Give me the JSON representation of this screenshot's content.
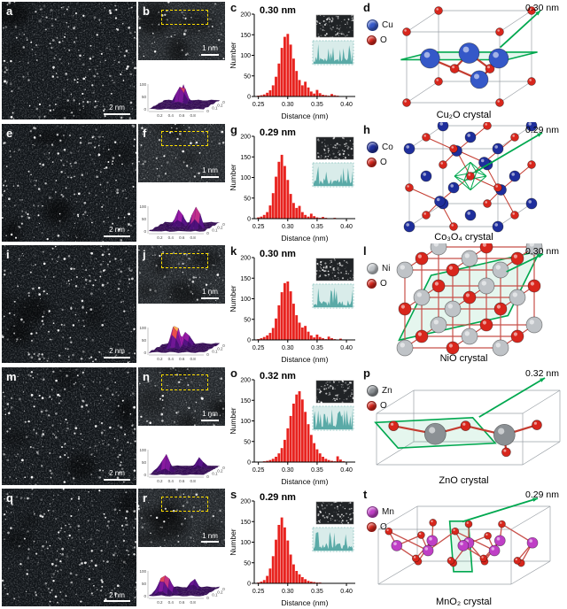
{
  "figure": {
    "rows": [
      {
        "stem": {
          "letter": "a",
          "scale_bar": "2 nm"
        },
        "zoom": {
          "letter": "b",
          "scale_bar": "1 nm"
        },
        "hist": {
          "letter": "c"
        },
        "crystal": {
          "letter": "d",
          "distance_label": "0.30 nm",
          "metal_label": "Cu",
          "metal_color": "#3558c8",
          "oxygen_label": "O",
          "caption": "Cu₂O crystal"
        }
      },
      {
        "stem": {
          "letter": "e",
          "scale_bar": "2 nm"
        },
        "zoom": {
          "letter": "f",
          "scale_bar": "1 nm"
        },
        "hist": {
          "letter": "g"
        },
        "crystal": {
          "letter": "h",
          "distance_label": "0.29 nm",
          "metal_label": "Co",
          "metal_color": "#1e2e9c",
          "oxygen_label": "O",
          "caption": "Co₃O₄ crystal"
        }
      },
      {
        "stem": {
          "letter": "i",
          "scale_bar": "2 nm"
        },
        "zoom": {
          "letter": "j",
          "scale_bar": "1 nm"
        },
        "hist": {
          "letter": "k"
        },
        "crystal": {
          "letter": "l",
          "distance_label": "0.30 nm",
          "metal_label": "Ni",
          "metal_color": "#bfc3c7",
          "oxygen_label": "O",
          "caption": "NiO crystal"
        }
      },
      {
        "stem": {
          "letter": "m",
          "scale_bar": "2 nm"
        },
        "zoom": {
          "letter": "n",
          "scale_bar": "1 nm"
        },
        "hist": {
          "letter": "o"
        },
        "crystal": {
          "letter": "p",
          "distance_label": "0.32 nm",
          "metal_label": "Zn",
          "metal_color": "#8b9094",
          "oxygen_label": "O",
          "caption": "ZnO crystal"
        }
      },
      {
        "stem": {
          "letter": "q",
          "scale_bar": "2 nm"
        },
        "zoom": {
          "letter": "r",
          "scale_bar": "1 nm"
        },
        "hist": {
          "letter": "s"
        },
        "crystal": {
          "letter": "t",
          "distance_label": "0.29 nm",
          "metal_label": "Mn",
          "metal_color": "#bf3fc6",
          "oxygen_label": "O",
          "caption": "MnO₂ crystal"
        }
      }
    ]
  },
  "surface_plot": {
    "xticks": [
      "0.2",
      "0.4",
      "0.6",
      "0.8"
    ],
    "yticks": [
      "0",
      "0.1",
      "0.2",
      "0.3"
    ],
    "zticks": [
      "100",
      "50",
      "0"
    ]
  },
  "colors": {
    "oxygen": "#d8261c",
    "accent_green": "#00a84f",
    "bar_red": "#e8231f",
    "roi_yellow": "#ffdf00"
  },
  "chart_data": [
    {
      "type": "bar",
      "title": "0.30 nm",
      "xlabel": "Distance (nm)",
      "ylabel": "Number",
      "xlim": [
        0.24,
        0.42
      ],
      "ylim": [
        0,
        200
      ],
      "yticks": [
        0,
        50,
        100,
        150,
        200
      ],
      "xticks": [
        "0.25",
        "0.30",
        "0.35",
        "0.40"
      ],
      "bin_width": 0.005,
      "x": [
        0.25,
        0.255,
        0.26,
        0.265,
        0.27,
        0.275,
        0.28,
        0.285,
        0.29,
        0.295,
        0.3,
        0.305,
        0.31,
        0.315,
        0.32,
        0.325,
        0.33,
        0.335,
        0.34,
        0.345,
        0.35,
        0.355,
        0.36,
        0.365,
        0.37,
        0.375,
        0.38,
        0.385,
        0.39,
        0.395,
        0.4
      ],
      "values": [
        2,
        3,
        5,
        9,
        15,
        27,
        48,
        80,
        118,
        145,
        152,
        126,
        92,
        62,
        40,
        27,
        36,
        22,
        12,
        7,
        16,
        8,
        4,
        3,
        2,
        6,
        3,
        2,
        1,
        1,
        1
      ]
    },
    {
      "type": "bar",
      "title": "0.29 nm",
      "xlabel": "Distance (nm)",
      "ylabel": "Number",
      "xlim": [
        0.24,
        0.42
      ],
      "ylim": [
        0,
        200
      ],
      "yticks": [
        0,
        50,
        100,
        150,
        200
      ],
      "xticks": [
        "0.25",
        "0.30",
        "0.35",
        "0.40"
      ],
      "bin_width": 0.005,
      "x": [
        0.25,
        0.255,
        0.26,
        0.265,
        0.27,
        0.275,
        0.28,
        0.285,
        0.29,
        0.295,
        0.3,
        0.305,
        0.31,
        0.315,
        0.32,
        0.325,
        0.33,
        0.335,
        0.34,
        0.345,
        0.35,
        0.355,
        0.36,
        0.365,
        0.37,
        0.375,
        0.38,
        0.385,
        0.39,
        0.395,
        0.4
      ],
      "values": [
        3,
        5,
        9,
        16,
        32,
        62,
        102,
        138,
        155,
        128,
        94,
        60,
        38,
        26,
        31,
        16,
        9,
        5,
        12,
        6,
        3,
        2,
        4,
        2,
        1,
        1,
        2,
        1,
        1,
        0,
        1
      ]
    },
    {
      "type": "bar",
      "title": "0.30 nm",
      "xlabel": "Distance (nm)",
      "ylabel": "Number",
      "xlim": [
        0.24,
        0.42
      ],
      "ylim": [
        0,
        200
      ],
      "yticks": [
        0,
        50,
        100,
        150,
        200
      ],
      "xticks": [
        "0.25",
        "0.30",
        "0.35",
        "0.40"
      ],
      "bin_width": 0.005,
      "x": [
        0.25,
        0.255,
        0.26,
        0.265,
        0.27,
        0.275,
        0.28,
        0.285,
        0.29,
        0.295,
        0.3,
        0.305,
        0.31,
        0.315,
        0.32,
        0.325,
        0.33,
        0.335,
        0.34,
        0.345,
        0.35,
        0.355,
        0.36,
        0.365,
        0.37,
        0.375,
        0.38,
        0.385,
        0.39,
        0.395,
        0.4
      ],
      "values": [
        2,
        4,
        7,
        11,
        17,
        29,
        52,
        84,
        116,
        138,
        142,
        118,
        88,
        60,
        42,
        30,
        34,
        20,
        11,
        6,
        13,
        7,
        4,
        2,
        8,
        4,
        2,
        1,
        3,
        1,
        1
      ]
    },
    {
      "type": "bar",
      "title": "0.32 nm",
      "xlabel": "Distance (nm)",
      "ylabel": "Number",
      "xlim": [
        0.24,
        0.42
      ],
      "ylim": [
        0,
        200
      ],
      "yticks": [
        0,
        50,
        100,
        150,
        200
      ],
      "xticks": [
        "0.25",
        "0.30",
        "0.35",
        "0.40"
      ],
      "bin_width": 0.005,
      "x": [
        0.25,
        0.255,
        0.26,
        0.265,
        0.27,
        0.275,
        0.28,
        0.285,
        0.29,
        0.295,
        0.3,
        0.305,
        0.31,
        0.315,
        0.32,
        0.325,
        0.33,
        0.335,
        0.34,
        0.345,
        0.35,
        0.355,
        0.36,
        0.365,
        0.37,
        0.375,
        0.38,
        0.385,
        0.39,
        0.395,
        0.4
      ],
      "values": [
        1,
        1,
        2,
        3,
        5,
        8,
        13,
        21,
        34,
        54,
        82,
        112,
        142,
        164,
        172,
        152,
        122,
        92,
        66,
        46,
        31,
        21,
        13,
        8,
        5,
        3,
        2,
        14,
        6,
        2,
        1
      ]
    },
    {
      "type": "bar",
      "title": "0.29 nm",
      "xlabel": "Distance (nm)",
      "ylabel": "Number",
      "xlim": [
        0.24,
        0.42
      ],
      "ylim": [
        0,
        200
      ],
      "yticks": [
        0,
        50,
        100,
        150,
        200
      ],
      "xticks": [
        "0.25",
        "0.30",
        "0.35",
        "0.40"
      ],
      "bin_width": 0.005,
      "x": [
        0.25,
        0.255,
        0.26,
        0.265,
        0.27,
        0.275,
        0.28,
        0.285,
        0.29,
        0.295,
        0.3,
        0.305,
        0.31,
        0.315,
        0.32,
        0.325,
        0.33,
        0.335,
        0.34,
        0.345,
        0.35,
        0.355,
        0.36,
        0.365,
        0.37,
        0.375,
        0.38,
        0.385,
        0.39,
        0.395,
        0.4
      ],
      "values": [
        2,
        4,
        8,
        18,
        36,
        66,
        106,
        142,
        160,
        136,
        104,
        70,
        46,
        30,
        22,
        15,
        10,
        6,
        4,
        3,
        2,
        2,
        1,
        1,
        1,
        1,
        1,
        0,
        1,
        0,
        1
      ]
    }
  ]
}
